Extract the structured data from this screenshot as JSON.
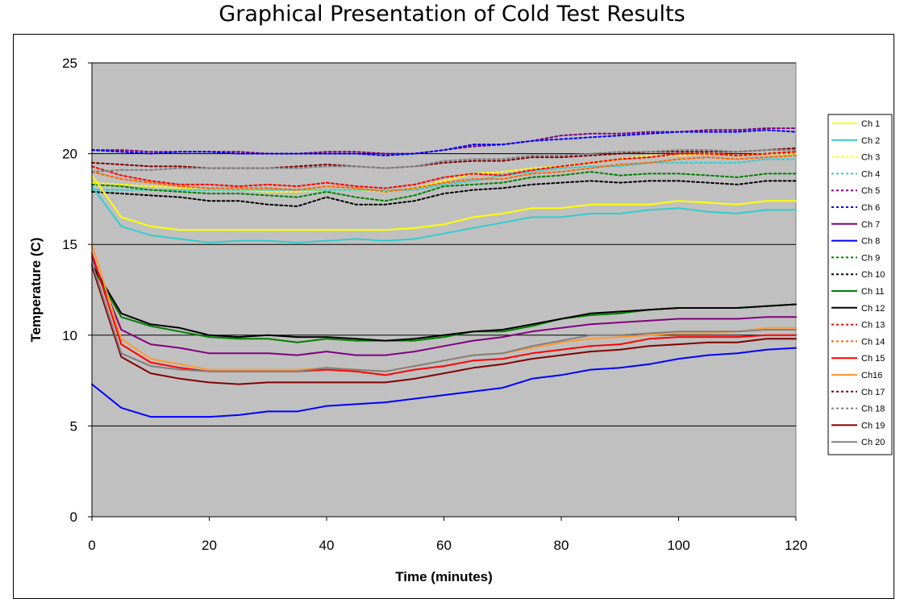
{
  "chart_data": {
    "type": "line",
    "title": "Graphical Presentation of Cold Test Results",
    "xlabel": "Time (minutes)",
    "ylabel": "Temperature (C)",
    "xlim": [
      0,
      120
    ],
    "ylim": [
      0,
      25
    ],
    "xticks": [
      0,
      20,
      40,
      60,
      80,
      100,
      120
    ],
    "yticks": [
      0,
      5,
      10,
      15,
      20,
      25
    ],
    "grid": "horizontal",
    "legend_position": "right",
    "background_color": "#c0c0c0",
    "x": [
      0,
      5,
      10,
      15,
      20,
      25,
      30,
      35,
      40,
      45,
      50,
      55,
      60,
      65,
      70,
      75,
      80,
      85,
      90,
      95,
      100,
      105,
      110,
      115,
      120
    ],
    "series": [
      {
        "name": "Ch 1",
        "color": "#ffff00",
        "dash": false,
        "values": [
          18.8,
          16.5,
          16.0,
          15.8,
          15.8,
          15.8,
          15.8,
          15.8,
          15.8,
          15.8,
          15.8,
          15.9,
          16.1,
          16.5,
          16.7,
          17.0,
          17.0,
          17.2,
          17.2,
          17.2,
          17.4,
          17.3,
          17.2,
          17.4,
          17.4
        ]
      },
      {
        "name": "Ch 2",
        "color": "#33cccc",
        "dash": false,
        "values": [
          18.2,
          16.0,
          15.5,
          15.3,
          15.1,
          15.2,
          15.2,
          15.1,
          15.2,
          15.3,
          15.2,
          15.3,
          15.6,
          15.9,
          16.2,
          16.5,
          16.5,
          16.7,
          16.7,
          16.9,
          17.0,
          16.8,
          16.7,
          16.9,
          16.9
        ]
      },
      {
        "name": "Ch 3",
        "color": "#ffff00",
        "dash": true,
        "values": [
          18.4,
          18.3,
          18.2,
          18.1,
          18.0,
          18.0,
          17.9,
          17.9,
          18.0,
          18.0,
          17.9,
          18.1,
          18.5,
          18.9,
          19.0,
          19.2,
          19.3,
          19.5,
          19.7,
          19.9,
          19.9,
          20.0,
          19.9,
          20.0,
          20.0
        ]
      },
      {
        "name": "Ch 4",
        "color": "#33cccc",
        "dash": true,
        "values": [
          18.0,
          18.0,
          18.0,
          18.0,
          18.0,
          18.0,
          18.0,
          18.0,
          18.0,
          18.0,
          18.0,
          18.0,
          18.3,
          18.5,
          18.8,
          19.0,
          19.2,
          19.3,
          19.3,
          19.5,
          19.5,
          19.5,
          19.5,
          19.7,
          19.7
        ]
      },
      {
        "name": "Ch 5",
        "color": "#800080",
        "dash": true,
        "values": [
          20.2,
          20.2,
          20.1,
          20.1,
          20.1,
          20.1,
          20.0,
          20.0,
          20.1,
          20.1,
          20.0,
          20.0,
          20.2,
          20.4,
          20.5,
          20.7,
          21.0,
          21.1,
          21.1,
          21.2,
          21.2,
          21.3,
          21.3,
          21.4,
          21.4
        ]
      },
      {
        "name": "Ch 6",
        "color": "#0000ff",
        "dash": true,
        "values": [
          20.2,
          20.1,
          20.0,
          20.1,
          20.1,
          20.0,
          20.0,
          20.0,
          20.0,
          20.0,
          19.9,
          20.0,
          20.2,
          20.5,
          20.5,
          20.7,
          20.8,
          20.9,
          21.0,
          21.1,
          21.2,
          21.2,
          21.2,
          21.3,
          21.2
        ]
      },
      {
        "name": "Ch 7",
        "color": "#800080",
        "dash": false,
        "values": [
          14.3,
          10.3,
          9.5,
          9.3,
          9.0,
          9.0,
          9.0,
          8.9,
          9.1,
          8.9,
          8.9,
          9.1,
          9.4,
          9.7,
          9.9,
          10.2,
          10.4,
          10.6,
          10.7,
          10.8,
          10.9,
          10.9,
          10.9,
          11.0,
          11.0
        ]
      },
      {
        "name": "Ch 8",
        "color": "#0000ff",
        "dash": false,
        "values": [
          7.3,
          6.0,
          5.5,
          5.5,
          5.5,
          5.6,
          5.8,
          5.8,
          6.1,
          6.2,
          6.3,
          6.5,
          6.7,
          6.9,
          7.1,
          7.6,
          7.8,
          8.1,
          8.2,
          8.4,
          8.7,
          8.9,
          9.0,
          9.2,
          9.3
        ]
      },
      {
        "name": "Ch 9",
        "color": "#008000",
        "dash": true,
        "values": [
          18.3,
          18.2,
          18.0,
          17.9,
          17.8,
          17.8,
          17.7,
          17.6,
          17.9,
          17.6,
          17.4,
          17.7,
          18.2,
          18.3,
          18.4,
          18.7,
          18.8,
          19.0,
          18.8,
          18.9,
          18.9,
          18.8,
          18.7,
          18.9,
          18.9
        ]
      },
      {
        "name": "Ch 10",
        "color": "#000000",
        "dash": true,
        "values": [
          17.9,
          17.8,
          17.7,
          17.6,
          17.4,
          17.4,
          17.2,
          17.1,
          17.6,
          17.2,
          17.2,
          17.4,
          17.8,
          18.0,
          18.1,
          18.3,
          18.4,
          18.5,
          18.4,
          18.5,
          18.5,
          18.4,
          18.3,
          18.5,
          18.5
        ]
      },
      {
        "name": "Ch 11",
        "color": "#008000",
        "dash": false,
        "values": [
          13.8,
          11.0,
          10.5,
          10.2,
          9.9,
          9.8,
          9.8,
          9.6,
          9.8,
          9.7,
          9.7,
          9.7,
          9.9,
          10.2,
          10.2,
          10.5,
          10.9,
          11.1,
          11.2,
          11.4,
          11.5,
          11.5,
          11.5,
          11.6,
          11.7
        ]
      },
      {
        "name": "Ch 12",
        "color": "#000000",
        "dash": false,
        "values": [
          13.9,
          11.2,
          10.6,
          10.4,
          10.0,
          9.9,
          10.0,
          9.9,
          9.9,
          9.8,
          9.7,
          9.8,
          10.0,
          10.2,
          10.3,
          10.6,
          10.9,
          11.2,
          11.3,
          11.4,
          11.5,
          11.5,
          11.5,
          11.6,
          11.7
        ]
      },
      {
        "name": "Ch 13",
        "color": "#ff0000",
        "dash": true,
        "values": [
          19.3,
          18.8,
          18.5,
          18.3,
          18.3,
          18.2,
          18.3,
          18.2,
          18.4,
          18.2,
          18.1,
          18.3,
          18.7,
          18.9,
          18.8,
          19.1,
          19.3,
          19.5,
          19.7,
          19.8,
          20.0,
          20.0,
          19.9,
          20.0,
          20.1
        ]
      },
      {
        "name": "Ch 14",
        "color": "#ff6600",
        "dash": true,
        "values": [
          19.0,
          18.6,
          18.4,
          18.2,
          18.1,
          18.1,
          18.1,
          18.0,
          18.2,
          18.1,
          17.9,
          18.1,
          18.4,
          18.6,
          18.6,
          18.9,
          19.0,
          19.2,
          19.4,
          19.5,
          19.7,
          19.8,
          19.7,
          19.8,
          19.9
        ]
      },
      {
        "name": "Ch 15",
        "color": "#ff0000",
        "dash": false,
        "values": [
          14.5,
          9.5,
          8.5,
          8.2,
          8.0,
          8.0,
          8.0,
          8.0,
          8.1,
          8.0,
          7.8,
          8.1,
          8.3,
          8.6,
          8.7,
          9.0,
          9.2,
          9.4,
          9.5,
          9.8,
          9.9,
          9.9,
          9.9,
          10.0,
          10.0
        ]
      },
      {
        "name": "Ch16",
        "color": "#ff9933",
        "dash": false,
        "values": [
          15.0,
          9.8,
          8.7,
          8.4,
          8.1,
          8.1,
          8.1,
          8.1,
          8.2,
          8.1,
          8.0,
          8.3,
          8.6,
          8.9,
          9.0,
          9.3,
          9.6,
          9.8,
          9.9,
          10.0,
          10.1,
          10.1,
          10.2,
          10.4,
          10.4
        ]
      },
      {
        "name": "Ch 17",
        "color": "#800000",
        "dash": true,
        "values": [
          19.5,
          19.4,
          19.3,
          19.3,
          19.2,
          19.2,
          19.2,
          19.3,
          19.4,
          19.3,
          19.2,
          19.3,
          19.5,
          19.6,
          19.6,
          19.8,
          19.8,
          19.9,
          20.0,
          20.1,
          20.1,
          20.1,
          20.1,
          20.2,
          20.3
        ]
      },
      {
        "name": "Ch 18",
        "color": "#808080",
        "dash": true,
        "values": [
          19.0,
          19.1,
          19.1,
          19.2,
          19.2,
          19.2,
          19.2,
          19.2,
          19.3,
          19.3,
          19.2,
          19.3,
          19.6,
          19.7,
          19.7,
          19.9,
          19.9,
          20.0,
          20.1,
          20.1,
          20.2,
          20.2,
          20.1,
          20.2,
          20.2
        ]
      },
      {
        "name": "Ch 19",
        "color": "#800000",
        "dash": false,
        "values": [
          13.8,
          8.8,
          7.9,
          7.6,
          7.4,
          7.3,
          7.4,
          7.4,
          7.4,
          7.4,
          7.4,
          7.6,
          7.9,
          8.2,
          8.4,
          8.7,
          8.9,
          9.1,
          9.2,
          9.4,
          9.5,
          9.6,
          9.6,
          9.8,
          9.8
        ]
      },
      {
        "name": "Ch 20",
        "color": "#808080",
        "dash": false,
        "values": [
          14.0,
          9.0,
          8.3,
          8.1,
          8.0,
          8.0,
          8.0,
          8.0,
          8.2,
          8.1,
          8.0,
          8.3,
          8.6,
          8.9,
          9.0,
          9.4,
          9.7,
          10.0,
          10.0,
          10.1,
          10.2,
          10.2,
          10.2,
          10.3,
          10.3
        ]
      }
    ]
  }
}
